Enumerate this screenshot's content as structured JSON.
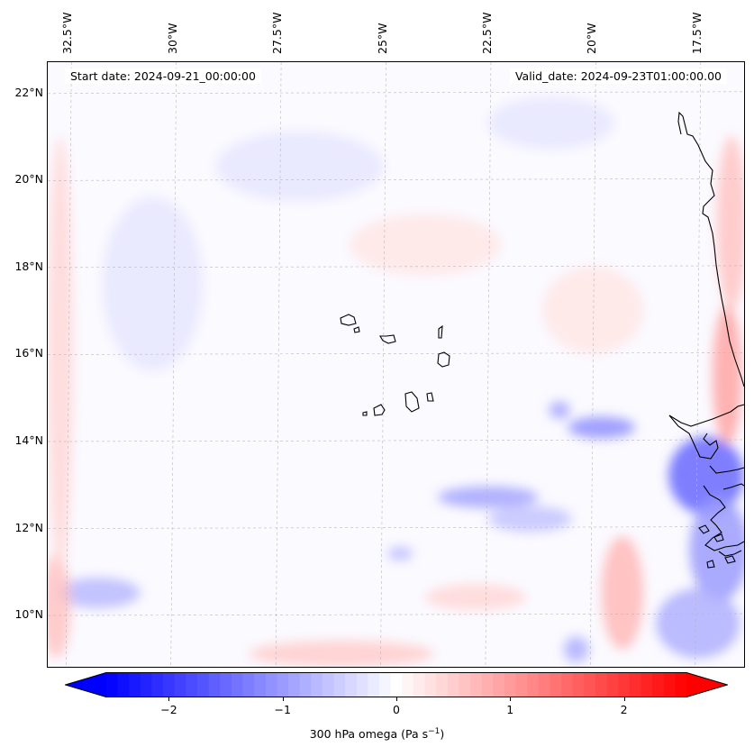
{
  "header": {
    "start_date": "Start date: 2024-09-21_00:00:00",
    "valid_date": "Valid_date: 2024-09-23T01:00:00.00"
  },
  "axes": {
    "lon_extent": [
      -33.0,
      -16.4
    ],
    "lat_extent": [
      8.8,
      22.7
    ],
    "lon_labels": [
      "32.5°W",
      "30°W",
      "27.5°W",
      "25°W",
      "22.5°W",
      "20°W",
      "17.5°W"
    ],
    "lon_values": [
      -32.5,
      -30.0,
      -27.5,
      -25.0,
      -22.5,
      -20.0,
      -17.5
    ],
    "lat_labels": [
      "22°N",
      "20°N",
      "18°N",
      "16°N",
      "14°N",
      "12°N",
      "10°N"
    ],
    "lat_values": [
      22,
      20,
      18,
      16,
      14,
      12,
      10
    ],
    "gridlines": true
  },
  "colorbar": {
    "ticks": [
      "−2",
      "−1",
      "0",
      "1",
      "2"
    ],
    "tick_values": [
      -2,
      -1,
      0,
      1,
      2
    ],
    "range": [
      -2.55,
      2.55
    ],
    "levels": 51,
    "extend": "both",
    "label_main": "300 hPa omega (Pa s",
    "label_exp": "−1",
    "label_end": ")",
    "colormap": "bwr",
    "color_low": "#0000ff",
    "color_mid": "#ffffff",
    "color_high": "#ff0000"
  },
  "field_features": [
    {
      "lon": -17.3,
      "lat": 13.2,
      "value": -1.5,
      "rlon": 0.9,
      "rlat": 0.9
    },
    {
      "lon": -17.0,
      "lat": 11.5,
      "value": -1.0,
      "rlon": 0.7,
      "rlat": 1.2
    },
    {
      "lon": -17.5,
      "lat": 9.8,
      "value": -0.8,
      "rlon": 1.0,
      "rlat": 0.8
    },
    {
      "lon": -19.8,
      "lat": 14.3,
      "value": -1.1,
      "rlon": 0.8,
      "rlat": 0.25
    },
    {
      "lon": -20.8,
      "lat": 14.7,
      "value": -0.9,
      "rlon": 0.25,
      "rlat": 0.2
    },
    {
      "lon": -22.5,
      "lat": 12.7,
      "value": -0.9,
      "rlon": 1.2,
      "rlat": 0.25
    },
    {
      "lon": -21.5,
      "lat": 12.2,
      "value": -0.6,
      "rlon": 1.0,
      "rlat": 0.3
    },
    {
      "lon": -24.6,
      "lat": 11.4,
      "value": -0.7,
      "rlon": 0.3,
      "rlat": 0.15
    },
    {
      "lon": -31.8,
      "lat": 10.5,
      "value": -0.7,
      "rlon": 1.0,
      "rlat": 0.35
    },
    {
      "lon": -20.4,
      "lat": 9.2,
      "value": -0.8,
      "rlon": 0.3,
      "rlat": 0.3
    },
    {
      "lon": -16.8,
      "lat": 15.5,
      "value": 0.9,
      "rlon": 0.35,
      "rlat": 1.6
    },
    {
      "lon": -16.7,
      "lat": 19.0,
      "value": 0.6,
      "rlon": 0.35,
      "rlat": 2.0
    },
    {
      "lon": -19.3,
      "lat": 10.5,
      "value": 0.7,
      "rlon": 0.5,
      "rlat": 1.3
    },
    {
      "lon": -32.8,
      "lat": 10.2,
      "value": 0.6,
      "rlon": 0.35,
      "rlat": 1.2
    },
    {
      "lon": -32.7,
      "lat": 16.0,
      "value": 0.4,
      "rlon": 0.3,
      "rlat": 5.0
    },
    {
      "lon": -26.0,
      "lat": 9.1,
      "value": 0.5,
      "rlon": 2.2,
      "rlat": 0.3
    },
    {
      "lon": -22.8,
      "lat": 10.4,
      "value": 0.4,
      "rlon": 1.2,
      "rlat": 0.3
    },
    {
      "lon": -27.0,
      "lat": 20.3,
      "value": -0.25,
      "rlon": 2.0,
      "rlat": 0.8
    },
    {
      "lon": -30.5,
      "lat": 17.6,
      "value": -0.25,
      "rlon": 1.2,
      "rlat": 2.0
    },
    {
      "lon": -21.0,
      "lat": 21.3,
      "value": -0.25,
      "rlon": 1.5,
      "rlat": 0.6
    },
    {
      "lon": -24.0,
      "lat": 18.5,
      "value": 0.25,
      "rlon": 1.8,
      "rlat": 0.7
    },
    {
      "lon": -20.0,
      "lat": 17.0,
      "value": 0.25,
      "rlon": 1.2,
      "rlat": 1.0
    }
  ]
}
